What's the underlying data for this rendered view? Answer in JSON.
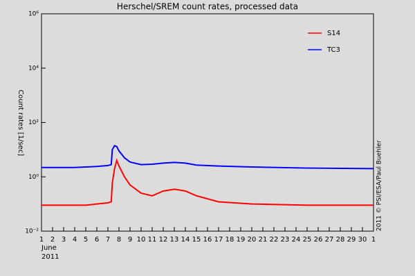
{
  "chart_data": {
    "type": "line",
    "title": "Herschel/SREM count rates, processed data",
    "ylabel": "Count rates [1/sec]",
    "xlabel_lines": [
      "June",
      "2011"
    ],
    "credit": "2011 © PSI/ESA/Paul Buehler",
    "x": [
      1,
      2,
      3,
      4,
      5,
      6,
      7,
      7.3,
      7.4,
      7.6,
      7.8,
      8,
      8.5,
      9,
      10,
      11,
      12,
      13,
      14,
      15,
      17,
      20,
      25,
      31
    ],
    "series": [
      {
        "name": "S14",
        "color": "#ff0000",
        "values": [
          0.09,
          0.09,
          0.09,
          0.09,
          0.09,
          0.1,
          0.11,
          0.12,
          0.6,
          2,
          4,
          2.5,
          1,
          0.5,
          0.25,
          0.2,
          0.3,
          0.35,
          0.3,
          0.2,
          0.12,
          0.1,
          0.09,
          0.09
        ]
      },
      {
        "name": "TC3",
        "color": "#0000ff",
        "values": [
          2.2,
          2.2,
          2.2,
          2.2,
          2.3,
          2.4,
          2.6,
          2.8,
          10,
          14,
          13,
          9,
          5,
          3.5,
          2.8,
          2.9,
          3.2,
          3.4,
          3.2,
          2.7,
          2.5,
          2.3,
          2.1,
          2.0
        ]
      }
    ],
    "xlim": [
      1,
      31
    ],
    "xticks": [
      1,
      2,
      3,
      4,
      5,
      6,
      7,
      8,
      9,
      10,
      11,
      12,
      13,
      14,
      15,
      16,
      17,
      18,
      19,
      20,
      21,
      22,
      23,
      24,
      25,
      26,
      27,
      28,
      29,
      30,
      {
        "value": 31,
        "label": "1"
      }
    ],
    "ylim": [
      0.01,
      1000000
    ],
    "yticks": [
      {
        "value": 0.01,
        "label": "10⁻²"
      },
      {
        "value": 1,
        "label": "10⁰"
      },
      {
        "value": 100,
        "label": "10²"
      },
      {
        "value": 10000,
        "label": "10⁴"
      },
      {
        "value": 1000000,
        "label": "10⁶"
      }
    ],
    "ylog": true,
    "legend": "upper right"
  }
}
